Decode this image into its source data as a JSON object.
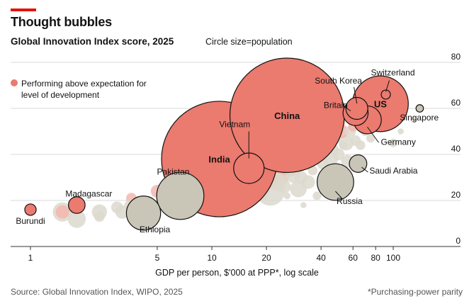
{
  "header": {
    "title": "Thought bubbles",
    "subtitle": "Global Innovation Index score, 2025",
    "size_note": "Circle size=population"
  },
  "legend": {
    "label": "Performing above expectation for level of development",
    "color": "#eb7a6f"
  },
  "footer": {
    "source": "Source: Global Innovation Index, WIPO, 2025",
    "footnote": "*Purchasing-power parity"
  },
  "colors": {
    "above": "#eb7a6f",
    "above_light": "#f3b7ad",
    "other": "#c9c6b8",
    "other_light": "#dcd9ce",
    "grid": "#d9d9d9",
    "accent": "#e3120b"
  },
  "chart_data": {
    "type": "scatter",
    "title": "Global Innovation Index score, 2025",
    "xlabel": "GDP per person, $'000 at PPP*, log scale",
    "ylabel": "",
    "x_scale": "log",
    "xlim": [
      0.85,
      175
    ],
    "ylim": [
      0,
      80
    ],
    "x_ticks": [
      1,
      5,
      10,
      20,
      40,
      60,
      80,
      100
    ],
    "y_ticks": [
      0,
      20,
      40,
      60,
      80
    ],
    "size_legend": "Circle size=population",
    "labeled_points": [
      {
        "name": "Burundi",
        "x": 1.0,
        "y": 16,
        "pop": 14,
        "above": true
      },
      {
        "name": "Madagascar",
        "x": 1.8,
        "y": 18,
        "pop": 30,
        "above": true
      },
      {
        "name": "Pakistan",
        "x": 6.7,
        "y": 22,
        "pop": 240,
        "above": false
      },
      {
        "name": "Ethiopia",
        "x": 4.2,
        "y": 14.5,
        "pop": 126,
        "above": false
      },
      {
        "name": "India",
        "x": 11,
        "y": 38,
        "pop": 1440,
        "above": true
      },
      {
        "name": "Vietnam",
        "x": 16,
        "y": 34,
        "pop": 100,
        "above": true
      },
      {
        "name": "China",
        "x": 26,
        "y": 57,
        "pop": 1410,
        "above": true
      },
      {
        "name": "Russia",
        "x": 48,
        "y": 28,
        "pop": 144,
        "above": false
      },
      {
        "name": "Saudi Arabia",
        "x": 64,
        "y": 36,
        "pop": 33,
        "above": false
      },
      {
        "name": "Britain",
        "x": 62,
        "y": 58,
        "pop": 68,
        "above": true
      },
      {
        "name": "South Korea",
        "x": 63,
        "y": 60,
        "pop": 52,
        "above": true
      },
      {
        "name": "Germany",
        "x": 72,
        "y": 55,
        "pop": 84,
        "above": true
      },
      {
        "name": "US",
        "x": 85,
        "y": 62,
        "pop": 335,
        "above": true
      },
      {
        "name": "Switzerland",
        "x": 91,
        "y": 66,
        "pop": 9,
        "above": true
      },
      {
        "name": "Singapore",
        "x": 140,
        "y": 60,
        "pop": 6,
        "above": false
      }
    ],
    "other_points": [
      {
        "x": 1.5,
        "y": 15,
        "pop": 20,
        "above": true
      },
      {
        "x": 1.5,
        "y": 15,
        "pop": 40,
        "above": false
      },
      {
        "x": 1.8,
        "y": 12,
        "pop": 35,
        "above": false
      },
      {
        "x": 2.4,
        "y": 15,
        "pop": 25,
        "above": false
      },
      {
        "x": 2.4,
        "y": 13,
        "pop": 12,
        "above": false
      },
      {
        "x": 3.0,
        "y": 17,
        "pop": 15,
        "above": false
      },
      {
        "x": 3.2,
        "y": 15,
        "pop": 20,
        "above": false
      },
      {
        "x": 3.5,
        "y": 18,
        "pop": 10,
        "above": false
      },
      {
        "x": 3.6,
        "y": 21,
        "pop": 12,
        "above": true
      },
      {
        "x": 3.9,
        "y": 17,
        "pop": 18,
        "above": false
      },
      {
        "x": 4.8,
        "y": 17,
        "pop": 22,
        "above": false
      },
      {
        "x": 5.0,
        "y": 24,
        "pop": 18,
        "above": true
      },
      {
        "x": 5.5,
        "y": 19,
        "pop": 25,
        "above": false
      },
      {
        "x": 6.0,
        "y": 20,
        "pop": 14,
        "above": false
      },
      {
        "x": 7.2,
        "y": 24,
        "pop": 45,
        "above": false
      },
      {
        "x": 8.0,
        "y": 18,
        "pop": 20,
        "above": false
      },
      {
        "x": 8.5,
        "y": 22,
        "pop": 15,
        "above": false
      },
      {
        "x": 9.5,
        "y": 17,
        "pop": 10,
        "above": false
      },
      {
        "x": 10,
        "y": 21,
        "pop": 110,
        "above": false
      },
      {
        "x": 11.5,
        "y": 25,
        "pop": 60,
        "above": false
      },
      {
        "x": 12.5,
        "y": 19,
        "pop": 35,
        "above": false
      },
      {
        "x": 13,
        "y": 28,
        "pop": 48,
        "above": true
      },
      {
        "x": 14,
        "y": 31,
        "pop": 25,
        "above": true
      },
      {
        "x": 14.5,
        "y": 22,
        "pop": 30,
        "above": false
      },
      {
        "x": 16.5,
        "y": 20,
        "pop": 12,
        "above": false
      },
      {
        "x": 17,
        "y": 27,
        "pop": 50,
        "above": false
      },
      {
        "x": 18,
        "y": 30,
        "pop": 70,
        "above": true
      },
      {
        "x": 18.5,
        "y": 24,
        "pop": 40,
        "above": false
      },
      {
        "x": 20,
        "y": 30,
        "pop": 60,
        "above": true
      },
      {
        "x": 21,
        "y": 24,
        "pop": 90,
        "above": false
      },
      {
        "x": 22,
        "y": 32,
        "pop": 110,
        "above": true
      },
      {
        "x": 23,
        "y": 28,
        "pop": 35,
        "above": false
      },
      {
        "x": 24,
        "y": 35,
        "pop": 40,
        "above": true
      },
      {
        "x": 25,
        "y": 26,
        "pop": 20,
        "above": false
      },
      {
        "x": 27,
        "y": 34,
        "pop": 30,
        "above": true
      },
      {
        "x": 28,
        "y": 31,
        "pop": 25,
        "above": false
      },
      {
        "x": 30,
        "y": 25,
        "pop": 30,
        "above": false
      },
      {
        "x": 31,
        "y": 30,
        "pop": 18,
        "above": false
      },
      {
        "x": 34,
        "y": 28,
        "pop": 20,
        "above": false
      },
      {
        "x": 36,
        "y": 33,
        "pop": 10,
        "above": false
      },
      {
        "x": 38,
        "y": 22,
        "pop": 8,
        "above": false
      },
      {
        "x": 41,
        "y": 36,
        "pop": 15,
        "above": false
      },
      {
        "x": 42,
        "y": 31,
        "pop": 12,
        "above": false
      },
      {
        "x": 44,
        "y": 29,
        "pop": 20,
        "above": false
      },
      {
        "x": 45,
        "y": 38,
        "pop": 25,
        "above": false
      },
      {
        "x": 46,
        "y": 25,
        "pop": 10,
        "above": false
      },
      {
        "x": 47,
        "y": 42,
        "pop": 12,
        "above": false
      },
      {
        "x": 48,
        "y": 54,
        "pop": 40,
        "above": true
      },
      {
        "x": 50,
        "y": 40,
        "pop": 15,
        "above": false
      },
      {
        "x": 52,
        "y": 50,
        "pop": 20,
        "above": true
      },
      {
        "x": 53,
        "y": 44,
        "pop": 8,
        "above": false
      },
      {
        "x": 55,
        "y": 45,
        "pop": 25,
        "above": false
      },
      {
        "x": 56,
        "y": 37,
        "pop": 18,
        "above": false
      },
      {
        "x": 58,
        "y": 50,
        "pop": 14,
        "above": false
      },
      {
        "x": 60,
        "y": 52,
        "pop": 10,
        "above": true
      },
      {
        "x": 62,
        "y": 46,
        "pop": 12,
        "above": false
      },
      {
        "x": 64,
        "y": 54,
        "pop": 16,
        "above": true
      },
      {
        "x": 66,
        "y": 44,
        "pop": 10,
        "above": false
      },
      {
        "x": 68,
        "y": 57,
        "pop": 8,
        "above": true
      },
      {
        "x": 70,
        "y": 50,
        "pop": 9,
        "above": false
      },
      {
        "x": 72,
        "y": 59,
        "pop": 10,
        "above": true
      },
      {
        "x": 75,
        "y": 47,
        "pop": 8,
        "above": false
      },
      {
        "x": 78,
        "y": 62,
        "pop": 10,
        "above": true
      },
      {
        "x": 80,
        "y": 55,
        "pop": 6,
        "above": false
      },
      {
        "x": 95,
        "y": 58,
        "pop": 6,
        "above": true
      },
      {
        "x": 100,
        "y": 45,
        "pop": 8,
        "above": false
      },
      {
        "x": 110,
        "y": 50,
        "pop": 4,
        "above": false
      },
      {
        "x": 130,
        "y": 55,
        "pop": 5,
        "above": false
      },
      {
        "x": 32,
        "y": 18,
        "pop": 4,
        "above": false
      },
      {
        "x": 26,
        "y": 22,
        "pop": 5,
        "above": false
      }
    ]
  }
}
